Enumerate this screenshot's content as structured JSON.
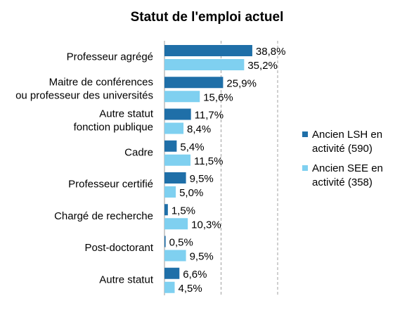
{
  "chart_data": {
    "type": "bar",
    "orientation": "horizontal",
    "title": "Statut de l'emploi actuel",
    "categories": [
      [
        "Professeur agrégé"
      ],
      [
        "Maitre de conférences",
        "ou professeur des universités"
      ],
      [
        "Autre statut",
        "fonction publique"
      ],
      [
        "Cadre"
      ],
      [
        "Professeur certifié"
      ],
      [
        "Chargé de recherche"
      ],
      [
        "Post-doctorant"
      ],
      [
        "Autre statut"
      ]
    ],
    "series": [
      {
        "name": "Ancien LSH en activité (590)",
        "legend_lines": [
          "Ancien LSH en",
          "activité (590)"
        ],
        "color": "#1f6fa8",
        "values": [
          38.8,
          25.9,
          11.7,
          5.4,
          9.5,
          1.5,
          0.5,
          6.6
        ],
        "labels": [
          "38,8%",
          "25,9%",
          "11,7%",
          "5,4%",
          "9,5%",
          "1,5%",
          "0,5%",
          "6,6%"
        ]
      },
      {
        "name": "Ancien SEE en activité (358)",
        "legend_lines": [
          "Ancien SEE en",
          "activité (358)"
        ],
        "color": "#7fd0f0",
        "values": [
          35.2,
          15.6,
          8.4,
          11.5,
          5.0,
          10.3,
          9.5,
          4.5
        ],
        "labels": [
          "35,2%",
          "15,6%",
          "8,4%",
          "11,5%",
          "5,0%",
          "10,3%",
          "9,5%",
          "4,5%"
        ]
      }
    ],
    "xlim": [
      0,
      50
    ],
    "grid": "vertical dashed",
    "legend_position": "right"
  }
}
